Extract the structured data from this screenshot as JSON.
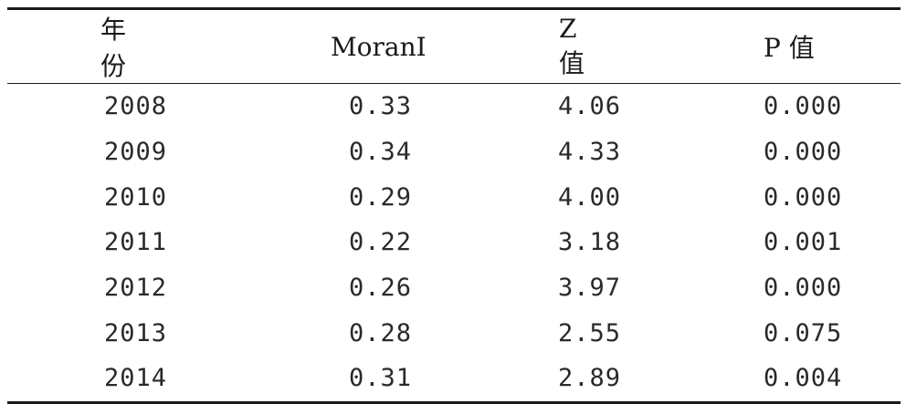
{
  "table": {
    "headers": [
      "年份",
      "MoranI",
      "Z 值",
      "P 值"
    ],
    "rows": [
      [
        "2008",
        "0.33",
        "4.06",
        "0.000"
      ],
      [
        "2009",
        "0.34",
        "4.33",
        "0.000"
      ],
      [
        "2010",
        "0.29",
        "4.00",
        "0.000"
      ],
      [
        "2011",
        "0.22",
        "3.18",
        "0.001"
      ],
      [
        "2012",
        "0.26",
        "3.97",
        "0.000"
      ],
      [
        "2013",
        "0.28",
        "2.55",
        "0.075"
      ],
      [
        "2014",
        "0.31",
        "2.89",
        "0.004"
      ]
    ]
  }
}
